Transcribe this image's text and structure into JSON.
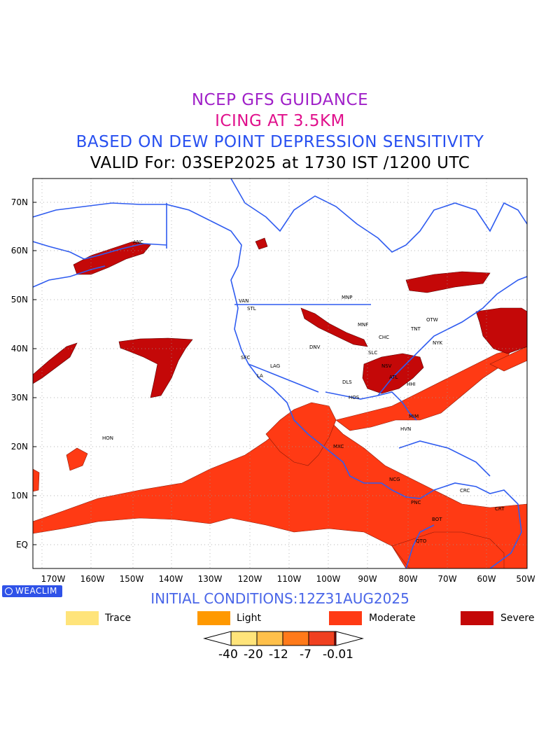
{
  "titles": {
    "line1": "NCEP GFS GUIDANCE",
    "line2": "ICING AT 3.5KM",
    "line3": "BASED ON DEW POINT DEPRESSION SENSITIVITY",
    "line4": "VALID For: 03SEP2025 at 1730 IST /1200 UTC"
  },
  "initial_conditions": "INITIAL CONDITIONS:12Z31AUG2025",
  "badge": "WEACLIM",
  "lat_labels": [
    "70N",
    "60N",
    "50N",
    "40N",
    "30N",
    "20N",
    "10N",
    "EQ"
  ],
  "lon_labels": [
    "170W",
    "160W",
    "150W",
    "140W",
    "130W",
    "120W",
    "110W",
    "100W",
    "90W",
    "80W",
    "70W",
    "60W",
    "50W"
  ],
  "stations": [
    "VAN",
    "STL",
    "MNP",
    "MNF",
    "CHC",
    "TNT",
    "OTW",
    "NYK",
    "DNV",
    "SLC",
    "SFC",
    "LAG",
    "LA",
    "NSV",
    "ATL",
    "HHI",
    "DLS",
    "HOS",
    "MIM",
    "HVN",
    "MXC",
    "NCG",
    "PNC",
    "BOT",
    "CRC",
    "CRT",
    "QTO",
    "HON",
    "ANC"
  ],
  "legend": [
    {
      "label": "Trace",
      "color": "#ffe47a"
    },
    {
      "label": "Light",
      "color": "#ff9900"
    },
    {
      "label": "Moderate",
      "color": "#ff3a14"
    },
    {
      "label": "Severe",
      "color": "#c40808"
    }
  ],
  "colorbar": {
    "labels": [
      "-40",
      "-20",
      "-12",
      "-7",
      "-0.01"
    ],
    "colors": [
      "#ffe47a",
      "#ffc04a",
      "#ff7a1a",
      "#f04020",
      "#c40808"
    ]
  },
  "colors": {
    "coast": "#2f5cf0",
    "moderate": "#ff3a14",
    "severe": "#c40808"
  }
}
